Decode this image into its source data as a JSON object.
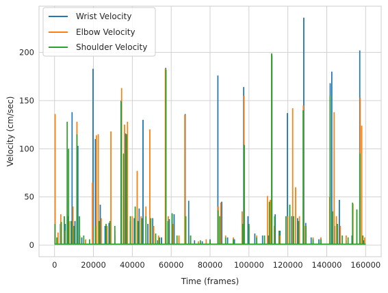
{
  "chart_data": {
    "type": "line",
    "title": "",
    "xlabel": "Time (frames)",
    "ylabel": "Velocity (cm/sec)",
    "xlim": [
      -8000,
      168000
    ],
    "ylim": [
      -12,
      248
    ],
    "x_ticks": [
      0,
      20000,
      40000,
      60000,
      80000,
      100000,
      120000,
      140000,
      160000
    ],
    "x_tick_labels": [
      "0",
      "20000",
      "40000",
      "60000",
      "80000",
      "100000",
      "120000",
      "140000",
      "160000"
    ],
    "y_ticks": [
      0,
      50,
      100,
      150,
      200
    ],
    "y_tick_labels": [
      "0",
      "50",
      "100",
      "150",
      "200"
    ],
    "grid": true,
    "legend_position": "upper-left",
    "baseline": {
      "x_start": 0,
      "x_end": 160000,
      "value": 1
    },
    "series": [
      {
        "name": "Wrist Velocity",
        "color": "#1f77b4",
        "spikes": [
          [
            300,
            10
          ],
          [
            1500,
            6
          ],
          [
            3000,
            22
          ],
          [
            5500,
            22
          ],
          [
            7000,
            30
          ],
          [
            9000,
            138
          ],
          [
            10500,
            25
          ],
          [
            12000,
            103
          ],
          [
            14000,
            8
          ],
          [
            16000,
            5
          ],
          [
            19800,
            183
          ],
          [
            21000,
            110
          ],
          [
            23500,
            42
          ],
          [
            26000,
            20
          ],
          [
            28000,
            23
          ],
          [
            31000,
            10
          ],
          [
            34200,
            150
          ],
          [
            36500,
            116
          ],
          [
            39000,
            25
          ],
          [
            41000,
            28
          ],
          [
            43500,
            38
          ],
          [
            45500,
            130
          ],
          [
            48000,
            22
          ],
          [
            50500,
            28
          ],
          [
            53000,
            5
          ],
          [
            55000,
            8
          ],
          [
            57200,
            184
          ],
          [
            59000,
            27
          ],
          [
            61500,
            32
          ],
          [
            64000,
            8
          ],
          [
            67200,
            136
          ],
          [
            69000,
            46
          ],
          [
            72000,
            5
          ],
          [
            76000,
            4
          ],
          [
            80000,
            6
          ],
          [
            84000,
            176
          ],
          [
            86000,
            45
          ],
          [
            89000,
            8
          ],
          [
            92500,
            6
          ],
          [
            97300,
            164
          ],
          [
            99500,
            30
          ],
          [
            103000,
            12
          ],
          [
            107000,
            10
          ],
          [
            110000,
            10
          ],
          [
            111800,
            197
          ],
          [
            113500,
            32
          ],
          [
            116000,
            15
          ],
          [
            119800,
            137
          ],
          [
            122000,
            30
          ],
          [
            125000,
            28
          ],
          [
            128200,
            236
          ],
          [
            129200,
            23
          ],
          [
            132000,
            8
          ],
          [
            136000,
            6
          ],
          [
            141800,
            168
          ],
          [
            142600,
            180
          ],
          [
            144000,
            20
          ],
          [
            146500,
            47
          ],
          [
            150000,
            5
          ],
          [
            153000,
            10
          ],
          [
            157000,
            202
          ],
          [
            159000,
            5
          ]
        ]
      },
      {
        "name": "Elbow Velocity",
        "color": "#ff7f0e",
        "spikes": [
          [
            300,
            136
          ],
          [
            1800,
            13
          ],
          [
            3200,
            32
          ],
          [
            5200,
            15
          ],
          [
            7500,
            25
          ],
          [
            9500,
            40
          ],
          [
            11500,
            128
          ],
          [
            13000,
            10
          ],
          [
            16000,
            6
          ],
          [
            19500,
            65
          ],
          [
            21500,
            114
          ],
          [
            22500,
            115
          ],
          [
            24000,
            28
          ],
          [
            27000,
            20
          ],
          [
            29000,
            118
          ],
          [
            31000,
            15
          ],
          [
            34500,
            163
          ],
          [
            36000,
            125
          ],
          [
            37500,
            128
          ],
          [
            40000,
            30
          ],
          [
            42500,
            77
          ],
          [
            44500,
            30
          ],
          [
            47000,
            40
          ],
          [
            49000,
            120
          ],
          [
            51000,
            20
          ],
          [
            53500,
            10
          ],
          [
            57000,
            183
          ],
          [
            58500,
            30
          ],
          [
            61000,
            22
          ],
          [
            64000,
            10
          ],
          [
            67000,
            135
          ],
          [
            70000,
            10
          ],
          [
            74000,
            4
          ],
          [
            78000,
            6
          ],
          [
            84200,
            40
          ],
          [
            85500,
            44
          ],
          [
            88000,
            10
          ],
          [
            92000,
            8
          ],
          [
            96500,
            35
          ],
          [
            97500,
            155
          ],
          [
            100000,
            20
          ],
          [
            104000,
            10
          ],
          [
            109500,
            51
          ],
          [
            111000,
            47
          ],
          [
            111600,
            198
          ],
          [
            113000,
            20
          ],
          [
            116000,
            10
          ],
          [
            120000,
            30
          ],
          [
            122500,
            142
          ],
          [
            124000,
            60
          ],
          [
            126000,
            30
          ],
          [
            128000,
            145
          ],
          [
            129000,
            20
          ],
          [
            133000,
            8
          ],
          [
            137000,
            8
          ],
          [
            141500,
            50
          ],
          [
            143800,
            138
          ],
          [
            145000,
            30
          ],
          [
            147000,
            20
          ],
          [
            150000,
            10
          ],
          [
            153500,
            43
          ],
          [
            157200,
            153
          ],
          [
            158000,
            124
          ],
          [
            159500,
            8
          ]
        ]
      },
      {
        "name": "Shoulder Velocity",
        "color": "#2ca02c",
        "spikes": [
          [
            200,
            22
          ],
          [
            1200,
            8
          ],
          [
            3500,
            24
          ],
          [
            5000,
            30
          ],
          [
            6500,
            128
          ],
          [
            7200,
            100
          ],
          [
            8500,
            25
          ],
          [
            10000,
            20
          ],
          [
            11500,
            115
          ],
          [
            12800,
            30
          ],
          [
            15000,
            10
          ],
          [
            18000,
            6
          ],
          [
            21000,
            20
          ],
          [
            23000,
            25
          ],
          [
            26500,
            22
          ],
          [
            28500,
            25
          ],
          [
            31000,
            20
          ],
          [
            34300,
            149
          ],
          [
            35500,
            95
          ],
          [
            37000,
            115
          ],
          [
            39000,
            30
          ],
          [
            41500,
            40
          ],
          [
            43000,
            25
          ],
          [
            45000,
            28
          ],
          [
            47000,
            30
          ],
          [
            49500,
            28
          ],
          [
            52000,
            12
          ],
          [
            54000,
            8
          ],
          [
            57300,
            182
          ],
          [
            58300,
            25
          ],
          [
            60500,
            33
          ],
          [
            63000,
            10
          ],
          [
            67500,
            30
          ],
          [
            70000,
            10
          ],
          [
            75000,
            5
          ],
          [
            80000,
            5
          ],
          [
            84100,
            36
          ],
          [
            85000,
            30
          ],
          [
            88000,
            8
          ],
          [
            92000,
            6
          ],
          [
            96800,
            22
          ],
          [
            97600,
            104
          ],
          [
            100000,
            22
          ],
          [
            104000,
            8
          ],
          [
            108000,
            10
          ],
          [
            110500,
            45
          ],
          [
            111700,
            199
          ],
          [
            113200,
            30
          ],
          [
            115500,
            15
          ],
          [
            119000,
            30
          ],
          [
            121000,
            42
          ],
          [
            123000,
            30
          ],
          [
            125500,
            25
          ],
          [
            127900,
            140
          ],
          [
            129300,
            20
          ],
          [
            133000,
            6
          ],
          [
            137000,
            6
          ],
          [
            141700,
            155
          ],
          [
            143000,
            35
          ],
          [
            145500,
            22
          ],
          [
            148000,
            10
          ],
          [
            151000,
            8
          ],
          [
            153300,
            44
          ],
          [
            155500,
            37
          ],
          [
            157100,
            95
          ],
          [
            158600,
            10
          ]
        ]
      }
    ]
  }
}
